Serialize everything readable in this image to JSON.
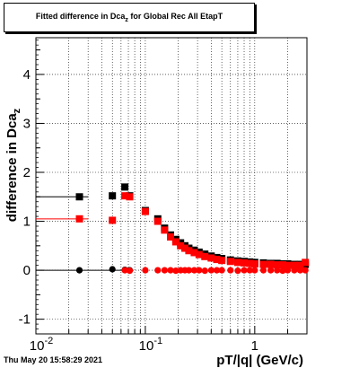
{
  "title": {
    "prefix": "Fitted difference in Dca",
    "subscript": "z",
    "suffix": " for Global Rec All EtapT"
  },
  "footer": "Thu May 20 15:58:29 2021",
  "chart_data": {
    "type": "scatter",
    "xlabel": "pT/|q| (GeV/c)",
    "ylabel_prefix": "difference in Dca",
    "ylabel_subscript": "z",
    "xscale": "log",
    "xlim": [
      0.01,
      3.0
    ],
    "ylim": [
      -1.3,
      4.75
    ],
    "grid": true,
    "x_ticks": [
      {
        "value": 0.01,
        "base": "10",
        "exp": "-2"
      },
      {
        "value": 0.1,
        "base": "10",
        "exp": "-1"
      },
      {
        "value": 1,
        "base": "1",
        "exp": ""
      }
    ],
    "y_ticks": [
      -1,
      0,
      1,
      2,
      3,
      4
    ],
    "series": [
      {
        "color": "#000000",
        "marker": "square",
        "x": [
          0.025,
          0.05,
          0.065,
          0.072,
          0.1,
          0.13,
          0.15,
          0.17,
          0.19,
          0.21,
          0.23,
          0.25,
          0.28,
          0.31,
          0.35,
          0.4,
          0.45,
          0.5,
          0.6,
          0.7,
          0.8,
          0.9,
          1.0,
          1.2,
          1.4,
          1.6,
          1.8,
          2.0,
          2.3,
          2.6,
          2.9
        ],
        "y": [
          1.5,
          1.52,
          1.7,
          1.52,
          1.22,
          1.05,
          0.86,
          0.72,
          0.63,
          0.56,
          0.5,
          0.45,
          0.41,
          0.37,
          0.33,
          0.29,
          0.26,
          0.24,
          0.21,
          0.19,
          0.18,
          0.17,
          0.16,
          0.15,
          0.14,
          0.14,
          0.13,
          0.13,
          0.12,
          0.12,
          0.12
        ]
      },
      {
        "color": "#ff0000",
        "marker": "square",
        "x": [
          0.025,
          0.05,
          0.065,
          0.072,
          0.1,
          0.13,
          0.15,
          0.17,
          0.19,
          0.21,
          0.23,
          0.25,
          0.28,
          0.31,
          0.35,
          0.4,
          0.45,
          0.5,
          0.6,
          0.7,
          0.8,
          0.9,
          1.0,
          1.2,
          1.4,
          1.6,
          1.8,
          2.0,
          2.3,
          2.6,
          2.9
        ],
        "y": [
          1.05,
          1.02,
          1.52,
          1.5,
          1.2,
          1.0,
          0.82,
          0.68,
          0.58,
          0.5,
          0.45,
          0.4,
          0.36,
          0.32,
          0.28,
          0.25,
          0.22,
          0.2,
          0.18,
          0.16,
          0.15,
          0.14,
          0.13,
          0.12,
          0.12,
          0.11,
          0.11,
          0.1,
          0.1,
          0.1,
          0.16
        ]
      },
      {
        "color": "#000000",
        "marker": "circle",
        "x": [
          0.025,
          0.05,
          0.065,
          0.072
        ],
        "y": [
          0.0,
          0.02,
          0.01,
          0.0
        ]
      },
      {
        "color": "#ff0000",
        "marker": "circle",
        "x": [
          0.065,
          0.072,
          0.1,
          0.13,
          0.15,
          0.17,
          0.19,
          0.21,
          0.23,
          0.25,
          0.28,
          0.31,
          0.35,
          0.4,
          0.45,
          0.5,
          0.6,
          0.7,
          0.8,
          0.9,
          1.0,
          1.2,
          1.4,
          1.6,
          1.8,
          2.0,
          2.3,
          2.6,
          2.9
        ],
        "y": [
          0.0,
          -0.01,
          0.0,
          0.0,
          0.0,
          0.0,
          -0.01,
          0.0,
          0.0,
          0.0,
          0.0,
          0.0,
          -0.01,
          0.0,
          0.0,
          0.0,
          0.0,
          -0.01,
          0.0,
          0.0,
          0.0,
          0.0,
          0.0,
          0.0,
          -0.01,
          0.0,
          0.0,
          0.0,
          0.0
        ]
      }
    ]
  }
}
